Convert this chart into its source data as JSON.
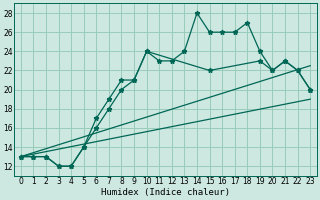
{
  "xlabel": "Humidex (Indice chaleur)",
  "bg_color": "#cce8e0",
  "grid_color": "#99ccbb",
  "line_color": "#006655",
  "xlim": [
    -0.5,
    23.5
  ],
  "ylim": [
    11,
    29
  ],
  "xticks": [
    0,
    1,
    2,
    3,
    4,
    5,
    6,
    7,
    8,
    9,
    10,
    11,
    12,
    13,
    14,
    15,
    16,
    17,
    18,
    19,
    20,
    21,
    22,
    23
  ],
  "yticks": [
    12,
    14,
    16,
    18,
    20,
    22,
    24,
    26,
    28
  ],
  "curve1_x": [
    0,
    1,
    2,
    3,
    4,
    5,
    6,
    7,
    8,
    9,
    10,
    11,
    12,
    13,
    14,
    15,
    16,
    17,
    18,
    19,
    20,
    21,
    22,
    23
  ],
  "curve1_y": [
    13,
    13,
    13,
    12,
    12,
    14,
    17,
    19,
    21,
    21,
    24,
    23,
    23,
    24,
    28,
    26,
    26,
    26,
    27,
    24,
    22,
    23,
    22,
    20
  ],
  "curve2_x": [
    0,
    1,
    2,
    3,
    4,
    5,
    6,
    7,
    8,
    9,
    10,
    15,
    19,
    20,
    21,
    22,
    23
  ],
  "curve2_y": [
    13,
    13,
    13,
    12,
    12,
    14,
    16,
    18,
    20,
    21,
    24,
    22,
    23,
    22,
    23,
    22,
    20
  ],
  "line1_x": [
    0,
    23
  ],
  "line1_y": [
    13,
    19
  ],
  "line2_x": [
    0,
    23
  ],
  "line2_y": [
    13,
    22.5
  ]
}
